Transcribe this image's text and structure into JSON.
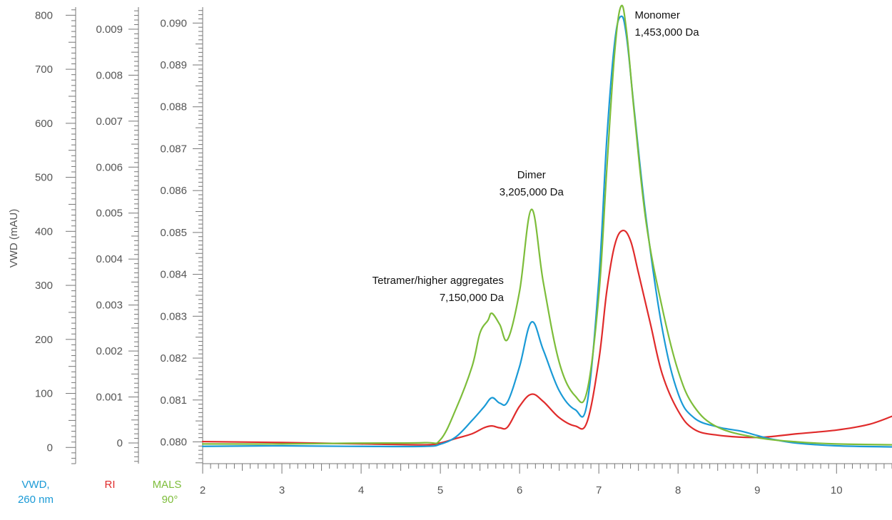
{
  "chart_data": {
    "type": "line",
    "xlim": [
      2,
      10.7
    ],
    "x_ticks": [
      2,
      3,
      4,
      5,
      6,
      7,
      8,
      9,
      10
    ],
    "grid": false,
    "axes": {
      "vwd": {
        "title": "VWD (mAU)",
        "name_line1": "VWD,",
        "name_line2": "260 nm",
        "color": "#1a9ad6",
        "ylim": [
          -30,
          815
        ],
        "ticks": [
          0,
          100,
          200,
          300,
          400,
          500,
          600,
          700,
          800
        ]
      },
      "ri": {
        "name": "RI",
        "color": "#e02b2b",
        "ylim": [
          -0.00045,
          0.00948
        ],
        "ticks": [
          0,
          0.001,
          0.002,
          0.003,
          0.004,
          0.005,
          0.006,
          0.007,
          0.008,
          0.009
        ],
        "tick_labels": [
          "0",
          "0.001",
          "0.002",
          "0.003",
          "0.004",
          "0.005",
          "0.006",
          "0.007",
          "0.008",
          "0.009"
        ]
      },
      "mals": {
        "name_line1": "MALS",
        "name_line2": "90°",
        "color": "#7dbd3a",
        "ylim": [
          0.07948,
          0.09038
        ],
        "ticks": [
          0.08,
          0.081,
          0.082,
          0.083,
          0.084,
          0.085,
          0.086,
          0.087,
          0.088,
          0.089,
          0.09
        ],
        "tick_labels": [
          "0.080",
          "0.081",
          "0.082",
          "0.083",
          "0.084",
          "0.085",
          "0.086",
          "0.087",
          "0.088",
          "0.089",
          "0.090"
        ]
      }
    },
    "series": [
      {
        "axis": "vwd",
        "color": "#1a9ad6",
        "x": [
          2.0,
          3.0,
          4.0,
          4.8,
          5.0,
          5.2,
          5.4,
          5.55,
          5.65,
          5.75,
          5.85,
          6.0,
          6.15,
          6.3,
          6.5,
          6.7,
          6.85,
          7.0,
          7.1,
          7.2,
          7.28,
          7.35,
          7.45,
          7.6,
          7.8,
          8.0,
          8.2,
          8.5,
          8.8,
          9.0,
          9.2,
          9.5,
          10.0,
          10.7
        ],
        "y": [
          2,
          3,
          2,
          2,
          6,
          20,
          50,
          75,
          92,
          82,
          85,
          150,
          232,
          180,
          105,
          70,
          80,
          310,
          570,
          750,
          798,
          760,
          620,
          420,
          220,
          100,
          55,
          38,
          30,
          22,
          15,
          8,
          3,
          1
        ]
      },
      {
        "axis": "ri",
        "color": "#e02b2b",
        "x": [
          2.0,
          3.0,
          4.0,
          4.8,
          5.0,
          5.2,
          5.4,
          5.55,
          5.65,
          5.75,
          5.85,
          6.0,
          6.15,
          6.3,
          6.5,
          6.7,
          6.85,
          7.0,
          7.1,
          7.2,
          7.3,
          7.4,
          7.5,
          7.65,
          7.8,
          8.0,
          8.2,
          8.5,
          9.0,
          9.5,
          10.0,
          10.4,
          10.7
        ],
        "y": [
          3e-05,
          1e-05,
          -2e-05,
          -4e-05,
          0.0,
          0.0001,
          0.0002,
          0.00033,
          0.00037,
          0.00033,
          0.00035,
          0.0008,
          0.00106,
          0.0009,
          0.00055,
          0.00037,
          0.00045,
          0.0018,
          0.0033,
          0.0043,
          0.00462,
          0.0044,
          0.0037,
          0.0026,
          0.0015,
          0.0007,
          0.0003,
          0.00017,
          0.00012,
          0.0002,
          0.00028,
          0.0004,
          0.00058
        ]
      },
      {
        "axis": "mals",
        "color": "#7dbd3a",
        "x": [
          2.0,
          3.0,
          4.0,
          4.8,
          5.0,
          5.2,
          5.4,
          5.5,
          5.6,
          5.65,
          5.75,
          5.85,
          6.0,
          6.15,
          6.3,
          6.5,
          6.7,
          6.85,
          7.0,
          7.1,
          7.2,
          7.28,
          7.35,
          7.45,
          7.6,
          7.8,
          8.0,
          8.2,
          8.5,
          9.0,
          9.5,
          10.0,
          10.7
        ],
        "y": [
          0.07995,
          0.07995,
          0.07997,
          0.07998,
          0.08005,
          0.0808,
          0.0818,
          0.0826,
          0.0829,
          0.08307,
          0.0828,
          0.08245,
          0.0836,
          0.08555,
          0.0838,
          0.0819,
          0.0811,
          0.0812,
          0.0835,
          0.0865,
          0.0893,
          0.0904,
          0.0898,
          0.0878,
          0.0852,
          0.0832,
          0.0817,
          0.08085,
          0.08035,
          0.0801,
          0.08,
          0.07995,
          0.07993
        ]
      }
    ],
    "annotations": [
      {
        "id": "monomer",
        "line1": "Monomer",
        "line2": "1,453,000 Da",
        "x": 7.3,
        "align": "start"
      },
      {
        "id": "dimer",
        "line1": "Dimer",
        "line2": "3,205,000 Da",
        "x": 6.15,
        "align": "middle"
      },
      {
        "id": "tetramer",
        "line1": "Tetramer/higher aggregates",
        "line2": "7,150,000 Da",
        "x": 5.8,
        "align": "end"
      }
    ]
  }
}
